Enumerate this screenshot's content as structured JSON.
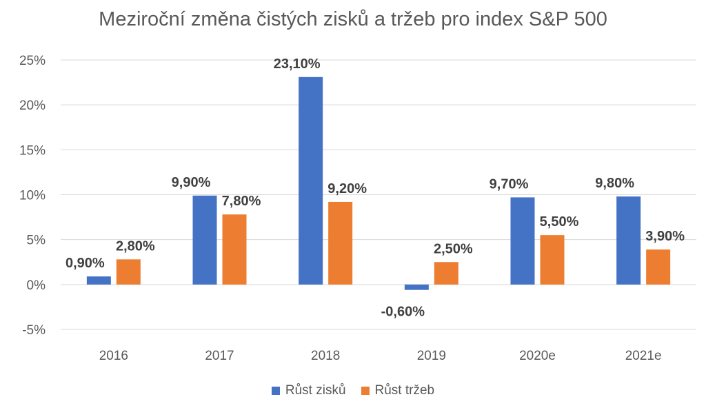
{
  "chart_data": {
    "type": "bar",
    "title": "Meziroční změna čistých zisků a tržeb pro index S&P 500",
    "categories": [
      "2016",
      "2017",
      "2018",
      "2019",
      "2020e",
      "2021e"
    ],
    "series": [
      {
        "name": "Růst zisků",
        "color": "#4472C4",
        "values": [
          0.9,
          9.9,
          23.1,
          -0.6,
          9.7,
          9.8
        ],
        "labels": [
          "0,90%",
          "9,90%",
          "23,10%",
          "-0,60%",
          "9,70%",
          "9,80%"
        ]
      },
      {
        "name": "Růst tržeb",
        "color": "#ED7D31",
        "values": [
          2.8,
          7.8,
          9.2,
          2.5,
          5.5,
          3.9
        ],
        "labels": [
          "2,80%",
          "7,80%",
          "9,20%",
          "2,50%",
          "5,50%",
          "3,90%"
        ]
      }
    ],
    "yticks": [
      25,
      20,
      15,
      10,
      5,
      0,
      -5
    ],
    "ytick_labels": [
      "25%",
      "20%",
      "15%",
      "10%",
      "5%",
      "0%",
      "-5%"
    ],
    "ylim": [
      -5,
      25
    ],
    "gridlines": true,
    "legend_position": "bottom"
  }
}
